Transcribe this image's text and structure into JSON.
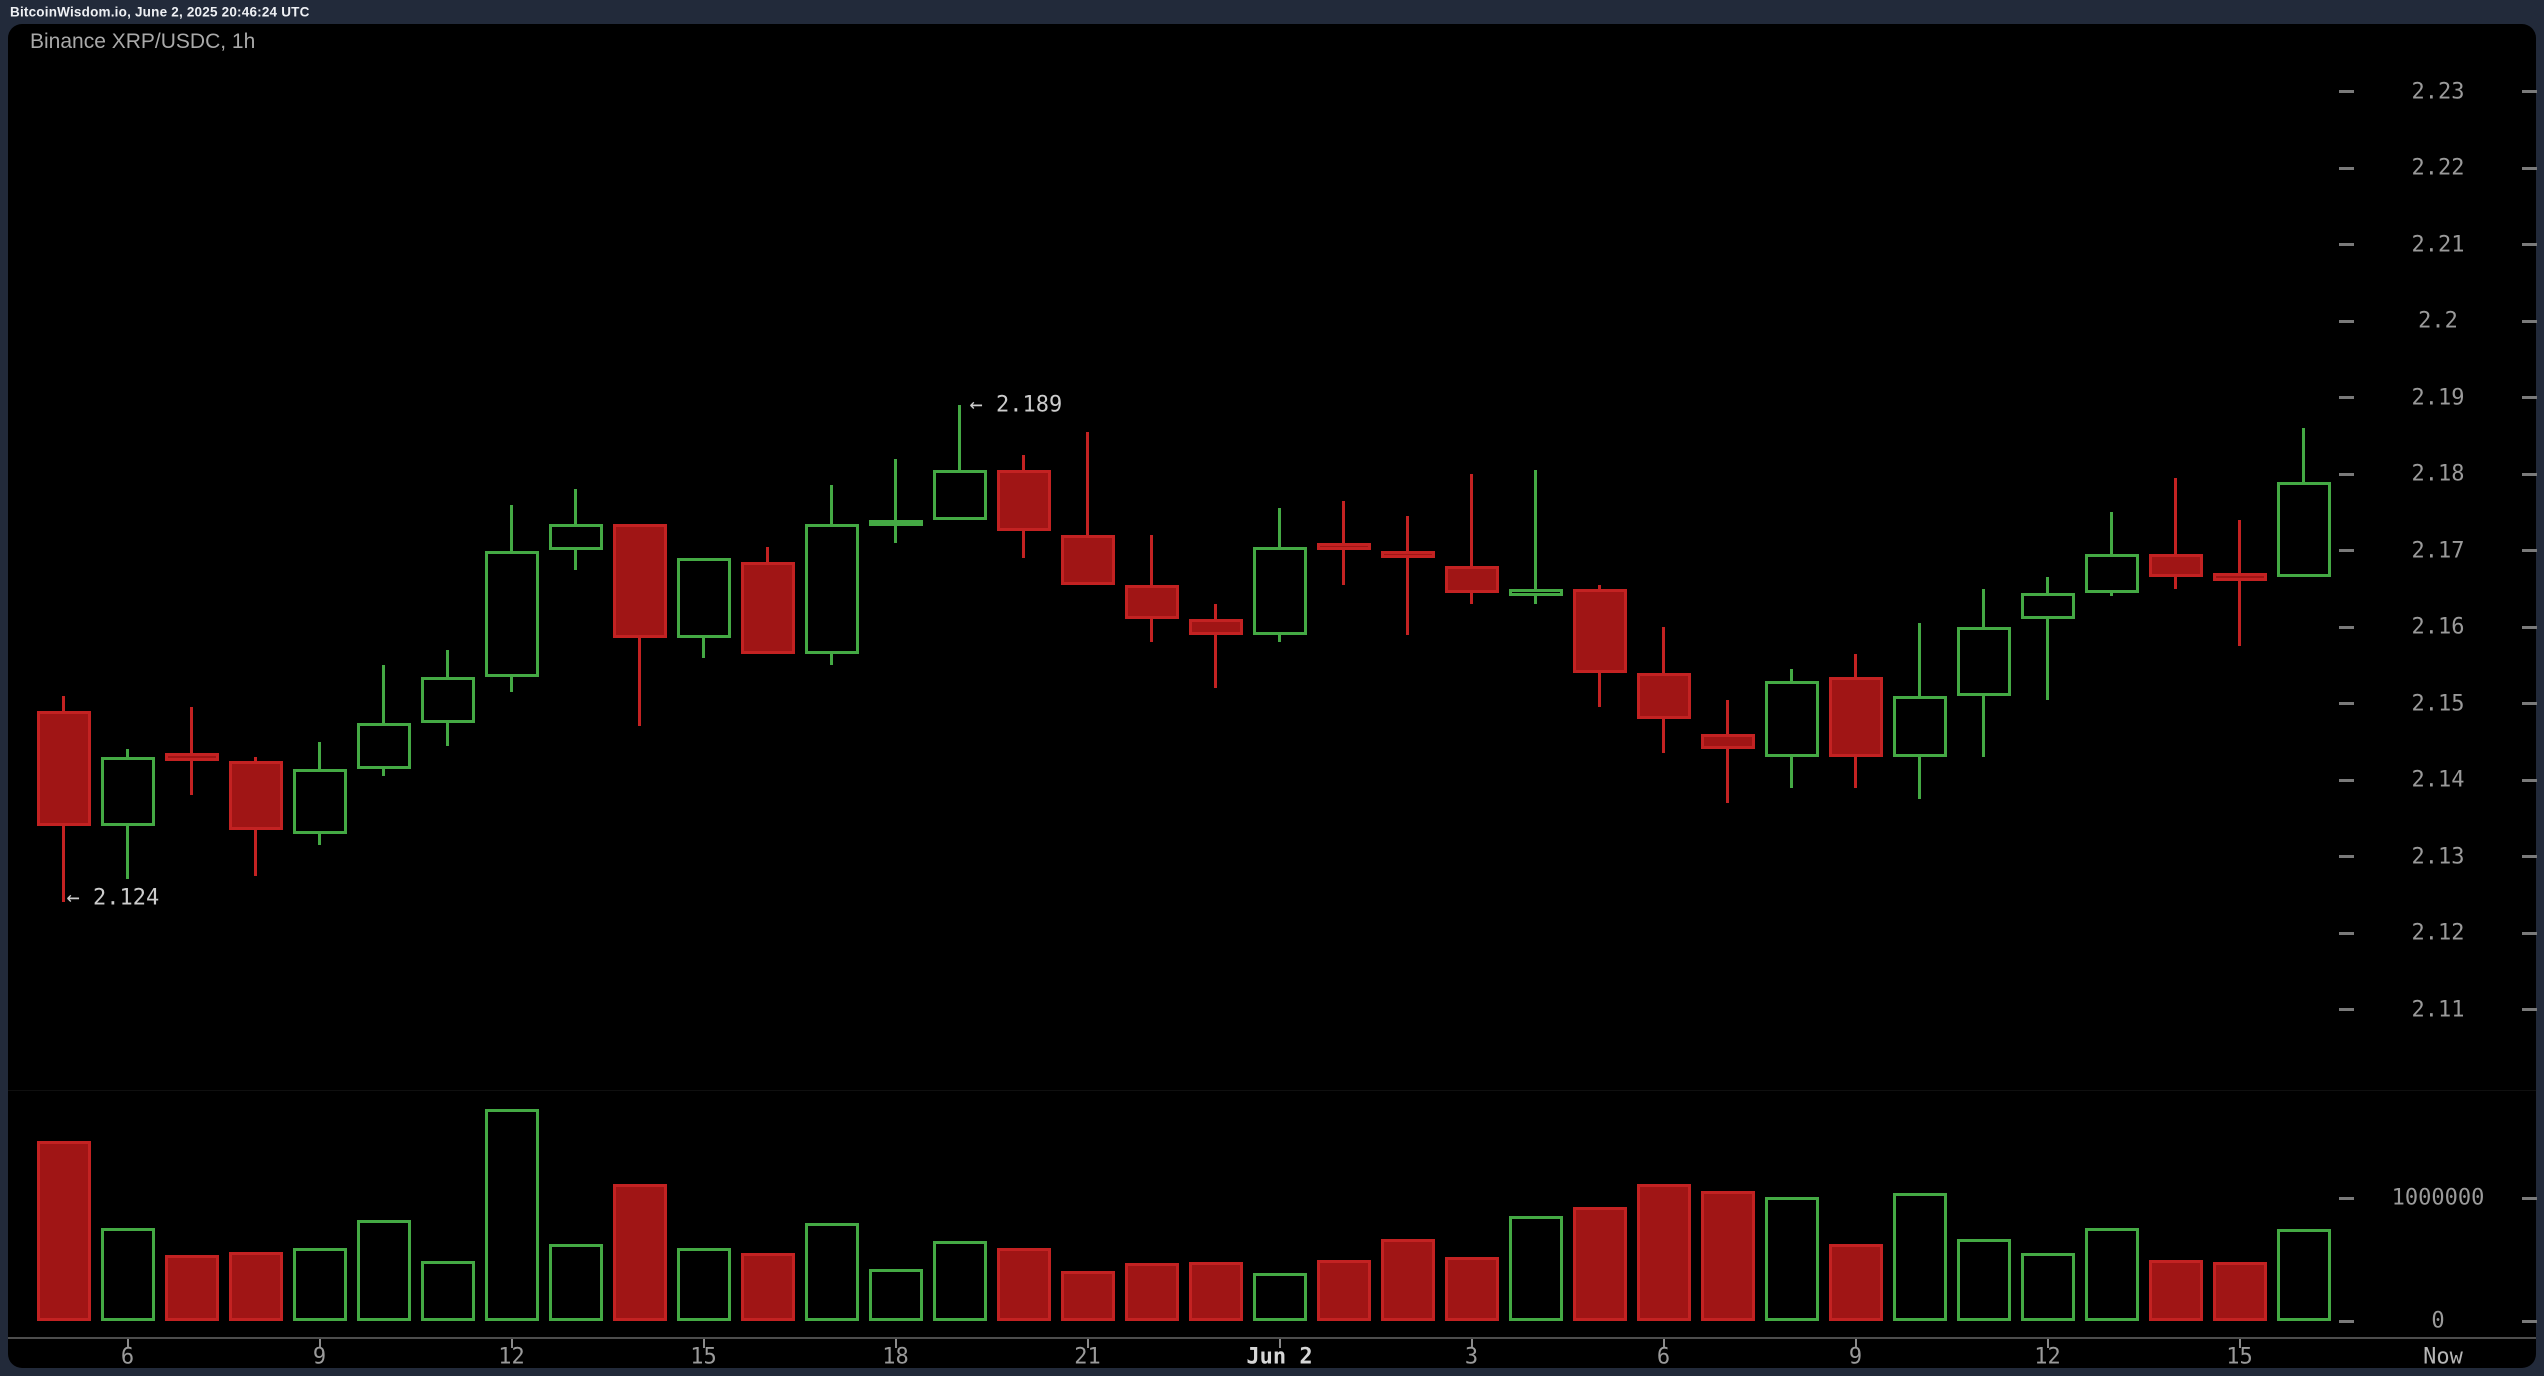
{
  "header": {
    "text": "BitcoinWisdom.io, June 2, 2025 20:46:24 UTC"
  },
  "chart": {
    "title": "Binance XRP/USDC, 1h",
    "annotations": {
      "high": "← 2.189",
      "low": "← 2.124"
    },
    "now_label": "Now",
    "colors": {
      "up": "#44a944",
      "down_stroke": "#c32222",
      "down_fill": "#a01515",
      "panel_bg": "#000000",
      "page_bg": "#222a3a",
      "axis_text": "#9a9a9a",
      "date_text": "#d6d6d6",
      "annotation_text": "#cccccc"
    },
    "price_axis": {
      "labels": [
        "2.23",
        "2.22",
        "2.21",
        "2.2",
        "2.19",
        "2.18",
        "2.17",
        "2.16",
        "2.15",
        "2.14",
        "2.13",
        "2.12",
        "2.11"
      ]
    },
    "volume_axis": {
      "labels": [
        {
          "text": "1000000",
          "value": 1000000
        },
        {
          "text": "0",
          "value": 0
        }
      ]
    },
    "x_axis": {
      "ticks": [
        {
          "text": "6",
          "candle": 1,
          "bold": false
        },
        {
          "text": "9",
          "candle": 4,
          "bold": false
        },
        {
          "text": "12",
          "candle": 7,
          "bold": false
        },
        {
          "text": "15",
          "candle": 10,
          "bold": false
        },
        {
          "text": "18",
          "candle": 13,
          "bold": false
        },
        {
          "text": "21",
          "candle": 16,
          "bold": false
        },
        {
          "text": "Jun 2",
          "candle": 19,
          "bold": true
        },
        {
          "text": "3",
          "candle": 22,
          "bold": false
        },
        {
          "text": "6",
          "candle": 25,
          "bold": false
        },
        {
          "text": "9",
          "candle": 28,
          "bold": false
        },
        {
          "text": "12",
          "candle": 31,
          "bold": false
        },
        {
          "text": "15",
          "candle": 34,
          "bold": false
        }
      ]
    }
  },
  "chart_data": {
    "type": "candlestick+volume-bar",
    "title": "Binance XRP/USDC, 1h",
    "timeframe_per_candle": "1h",
    "price_axis_range": [
      2.105,
      2.235
    ],
    "volume_axis_range": [
      0,
      1750000
    ],
    "grid": "off",
    "legend": "none",
    "high_annotation_value": 2.189,
    "low_annotation_value": 2.124,
    "candles": [
      {
        "t": "Jun 1 05:00",
        "o": 2.149,
        "h": 2.151,
        "l": 2.124,
        "c": 2.134,
        "v": 1460000
      },
      {
        "t": "Jun 1 06:00",
        "o": 2.134,
        "h": 2.144,
        "l": 2.127,
        "c": 2.143,
        "v": 760000
      },
      {
        "t": "Jun 1 07:00",
        "o": 2.1435,
        "h": 2.1495,
        "l": 2.138,
        "c": 2.1425,
        "v": 540000
      },
      {
        "t": "Jun 1 08:00",
        "o": 2.1425,
        "h": 2.143,
        "l": 2.1275,
        "c": 2.1335,
        "v": 560000
      },
      {
        "t": "Jun 1 09:00",
        "o": 2.133,
        "h": 2.145,
        "l": 2.1315,
        "c": 2.1415,
        "v": 590000
      },
      {
        "t": "Jun 1 10:00",
        "o": 2.1415,
        "h": 2.155,
        "l": 2.1405,
        "c": 2.1475,
        "v": 820000
      },
      {
        "t": "Jun 1 11:00",
        "o": 2.1475,
        "h": 2.157,
        "l": 2.1445,
        "c": 2.1535,
        "v": 490000
      },
      {
        "t": "Jun 1 12:00",
        "o": 2.1535,
        "h": 2.176,
        "l": 2.1515,
        "c": 2.17,
        "v": 1720000
      },
      {
        "t": "Jun 1 13:00",
        "o": 2.17,
        "h": 2.178,
        "l": 2.1675,
        "c": 2.1735,
        "v": 630000
      },
      {
        "t": "Jun 1 14:00",
        "o": 2.1735,
        "h": 2.1735,
        "l": 2.147,
        "c": 2.1585,
        "v": 1110000
      },
      {
        "t": "Jun 1 15:00",
        "o": 2.1585,
        "h": 2.169,
        "l": 2.156,
        "c": 2.169,
        "v": 590000
      },
      {
        "t": "Jun 1 16:00",
        "o": 2.1685,
        "h": 2.1705,
        "l": 2.1565,
        "c": 2.1565,
        "v": 550000
      },
      {
        "t": "Jun 1 17:00",
        "o": 2.1565,
        "h": 2.1785,
        "l": 2.155,
        "c": 2.1735,
        "v": 800000
      },
      {
        "t": "Jun 1 18:00",
        "o": 2.1733,
        "h": 2.182,
        "l": 2.171,
        "c": 2.174,
        "v": 420000
      },
      {
        "t": "Jun 1 19:00",
        "o": 2.174,
        "h": 2.189,
        "l": 2.174,
        "c": 2.1805,
        "v": 650000
      },
      {
        "t": "Jun 1 20:00",
        "o": 2.1805,
        "h": 2.1825,
        "l": 2.169,
        "c": 2.1725,
        "v": 590000
      },
      {
        "t": "Jun 1 21:00",
        "o": 2.172,
        "h": 2.1855,
        "l": 2.1655,
        "c": 2.1655,
        "v": 410000
      },
      {
        "t": "Jun 1 22:00",
        "o": 2.1655,
        "h": 2.172,
        "l": 2.158,
        "c": 2.161,
        "v": 470000
      },
      {
        "t": "Jun 1 23:00",
        "o": 2.161,
        "h": 2.163,
        "l": 2.152,
        "c": 2.159,
        "v": 480000
      },
      {
        "t": "Jun 2 00:00",
        "o": 2.159,
        "h": 2.1755,
        "l": 2.158,
        "c": 2.1705,
        "v": 390000
      },
      {
        "t": "Jun 2 01:00",
        "o": 2.171,
        "h": 2.1765,
        "l": 2.1655,
        "c": 2.17,
        "v": 500000
      },
      {
        "t": "Jun 2 02:00",
        "o": 2.17,
        "h": 2.1745,
        "l": 2.159,
        "c": 2.169,
        "v": 670000
      },
      {
        "t": "Jun 2 03:00",
        "o": 2.168,
        "h": 2.18,
        "l": 2.163,
        "c": 2.1645,
        "v": 520000
      },
      {
        "t": "Jun 2 04:00",
        "o": 2.164,
        "h": 2.1805,
        "l": 2.163,
        "c": 2.165,
        "v": 850000
      },
      {
        "t": "Jun 2 05:00",
        "o": 2.165,
        "h": 2.1655,
        "l": 2.1495,
        "c": 2.154,
        "v": 930000
      },
      {
        "t": "Jun 2 06:00",
        "o": 2.154,
        "h": 2.16,
        "l": 2.1435,
        "c": 2.148,
        "v": 1110000
      },
      {
        "t": "Jun 2 07:00",
        "o": 2.146,
        "h": 2.1505,
        "l": 2.137,
        "c": 2.144,
        "v": 1060000
      },
      {
        "t": "Jun 2 08:00",
        "o": 2.143,
        "h": 2.1545,
        "l": 2.139,
        "c": 2.153,
        "v": 1010000
      },
      {
        "t": "Jun 2 09:00",
        "o": 2.1535,
        "h": 2.1565,
        "l": 2.139,
        "c": 2.143,
        "v": 630000
      },
      {
        "t": "Jun 2 10:00",
        "o": 2.143,
        "h": 2.1605,
        "l": 2.1375,
        "c": 2.151,
        "v": 1040000
      },
      {
        "t": "Jun 2 11:00",
        "o": 2.151,
        "h": 2.165,
        "l": 2.143,
        "c": 2.16,
        "v": 670000
      },
      {
        "t": "Jun 2 12:00",
        "o": 2.161,
        "h": 2.1665,
        "l": 2.1505,
        "c": 2.1645,
        "v": 550000
      },
      {
        "t": "Jun 2 13:00",
        "o": 2.1645,
        "h": 2.175,
        "l": 2.164,
        "c": 2.1695,
        "v": 760000
      },
      {
        "t": "Jun 2 14:00",
        "o": 2.1695,
        "h": 2.1795,
        "l": 2.165,
        "c": 2.1665,
        "v": 500000
      },
      {
        "t": "Jun 2 15:00",
        "o": 2.167,
        "h": 2.174,
        "l": 2.1575,
        "c": 2.166,
        "v": 480000
      },
      {
        "t": "Jun 2 16:00",
        "o": 2.1665,
        "h": 2.186,
        "l": 2.1665,
        "c": 2.179,
        "v": 750000
      }
    ]
  }
}
